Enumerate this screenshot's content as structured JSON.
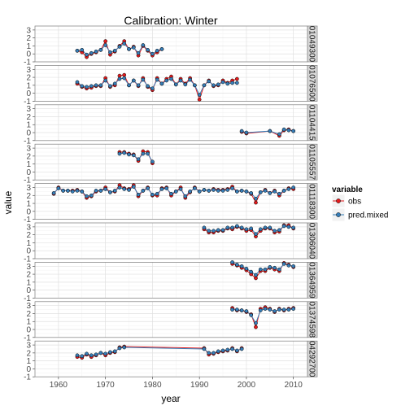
{
  "chart_data": {
    "type": "line",
    "title": "Calibration: Winter",
    "xlabel": "year",
    "ylabel": "value",
    "xlim": [
      1955,
      2013
    ],
    "ylim": [
      -1,
      3.5
    ],
    "x_ticks": [
      1960,
      1970,
      1980,
      1990,
      2000,
      2010
    ],
    "y_ticks": [
      -1,
      0,
      1,
      2,
      3
    ],
    "grid": true,
    "legend": {
      "title": "variable",
      "position": "right",
      "entries": [
        {
          "name": "obs",
          "color": "#e41a1c"
        },
        {
          "name": "pred.mixed",
          "color": "#377eb8"
        }
      ]
    },
    "panels": [
      {
        "label": "01049300",
        "x": [
          1964,
          1965,
          1966,
          1967,
          1968,
          1969,
          1970,
          1971,
          1972,
          1973,
          1974,
          1975,
          1976,
          1977,
          1978,
          1979,
          1980,
          1981,
          1982
        ],
        "obs": [
          0.4,
          0.2,
          -0.4,
          0.0,
          0.2,
          0.5,
          1.6,
          -0.1,
          0.3,
          1.0,
          1.6,
          0.6,
          0.9,
          -0.2,
          1.0,
          0.4,
          -0.2,
          0.2,
          0.6
        ],
        "pred": [
          0.4,
          0.5,
          -0.1,
          0.1,
          0.3,
          0.5,
          1.1,
          0.2,
          0.4,
          0.9,
          1.3,
          0.6,
          0.8,
          0.1,
          1.1,
          0.5,
          0.0,
          0.4,
          0.6
        ]
      },
      {
        "label": "01076500",
        "x": [
          1964,
          1965,
          1966,
          1967,
          1968,
          1969,
          1970,
          1971,
          1972,
          1973,
          1974,
          1975,
          1976,
          1977,
          1978,
          1979,
          1980,
          1981,
          1982,
          1983,
          1984,
          1985,
          1986,
          1987,
          1988,
          1989,
          1990,
          1991,
          1992,
          1993,
          1994,
          1995,
          1996,
          1997,
          1998
        ],
        "obs": [
          1.2,
          0.8,
          0.6,
          0.7,
          0.9,
          0.9,
          1.9,
          0.8,
          1.0,
          2.2,
          2.3,
          1.0,
          1.6,
          0.9,
          1.9,
          0.8,
          0.4,
          1.9,
          1.2,
          1.8,
          2.1,
          1.1,
          1.8,
          1.2,
          1.9,
          1.0,
          -0.8,
          1.0,
          1.6,
          0.9,
          1.0,
          1.6,
          1.3,
          1.6,
          1.8
        ],
        "pred": [
          1.4,
          0.9,
          0.8,
          0.9,
          1.0,
          1.0,
          1.6,
          0.9,
          1.2,
          1.8,
          1.9,
          1.0,
          1.6,
          1.0,
          1.7,
          0.9,
          0.6,
          1.7,
          1.2,
          1.6,
          1.8,
          1.1,
          1.6,
          1.1,
          1.7,
          1.0,
          -0.2,
          1.0,
          1.5,
          1.0,
          1.1,
          1.4,
          1.2,
          1.3,
          1.3
        ]
      },
      {
        "label": "01104415",
        "x": [
          1999,
          2000,
          2005,
          2007,
          2008,
          2009,
          2010
        ],
        "obs": [
          0.1,
          -0.1,
          0.2,
          -0.4,
          0.3,
          0.4,
          0.2
        ],
        "pred": [
          0.2,
          0.0,
          0.2,
          -0.2,
          0.4,
          0.3,
          0.2
        ]
      },
      {
        "label": "01105557",
        "x": [
          1973,
          1974,
          1975,
          1976,
          1977,
          1978,
          1979,
          1980
        ],
        "obs": [
          2.5,
          2.5,
          2.3,
          2.2,
          1.4,
          2.6,
          2.5,
          1.1
        ],
        "pred": [
          2.3,
          2.4,
          2.2,
          2.1,
          1.6,
          2.3,
          2.3,
          1.3
        ]
      },
      {
        "label": "01118300",
        "x": [
          1959,
          1960,
          1961,
          1962,
          1963,
          1964,
          1965,
          1966,
          1967,
          1968,
          1969,
          1970,
          1971,
          1972,
          1973,
          1974,
          1975,
          1976,
          1977,
          1978,
          1979,
          1980,
          1981,
          1982,
          1983,
          1984,
          1985,
          1986,
          1987,
          1988,
          1989,
          1990,
          1991,
          1992,
          1993,
          1994,
          1995,
          1996,
          1997,
          1998,
          1999,
          2000,
          2001,
          2002,
          2003,
          2004,
          2005,
          2006,
          2007,
          2008,
          2009,
          2010
        ],
        "obs": [
          2.2,
          3.0,
          2.6,
          2.6,
          2.6,
          2.7,
          2.5,
          1.7,
          1.9,
          2.5,
          2.6,
          3.0,
          2.4,
          2.5,
          3.3,
          2.9,
          2.8,
          3.3,
          1.9,
          2.6,
          3.0,
          2.0,
          2.0,
          2.9,
          3.0,
          2.0,
          2.5,
          3.0,
          1.7,
          2.4,
          3.0,
          2.5,
          2.7,
          2.6,
          2.8,
          2.7,
          2.7,
          2.8,
          3.1,
          2.5,
          2.6,
          2.5,
          2.2,
          1.1,
          2.4,
          2.7,
          2.3,
          2.6,
          2.0,
          2.6,
          2.9,
          2.8
        ],
        "pred": [
          2.3,
          2.9,
          2.6,
          2.6,
          2.5,
          2.6,
          2.5,
          1.9,
          2.0,
          2.6,
          2.6,
          2.8,
          2.4,
          2.6,
          3.0,
          2.8,
          2.7,
          3.1,
          2.1,
          2.6,
          2.9,
          2.1,
          2.2,
          2.8,
          2.9,
          2.2,
          2.5,
          2.8,
          1.9,
          2.5,
          2.9,
          2.5,
          2.7,
          2.6,
          2.7,
          2.6,
          2.6,
          2.7,
          2.9,
          2.5,
          2.6,
          2.5,
          2.3,
          1.6,
          2.4,
          2.6,
          2.3,
          2.5,
          2.2,
          2.6,
          2.8,
          3.0
        ]
      },
      {
        "label": "01306040",
        "x": [
          1991,
          1992,
          1993,
          1994,
          1995,
          1996,
          1997,
          1998,
          1999,
          2000,
          2001,
          2002,
          2003,
          2004,
          2005,
          2006,
          2007,
          2008,
          2009,
          2010
        ],
        "obs": [
          2.7,
          2.3,
          2.3,
          2.5,
          2.5,
          2.8,
          2.7,
          3.0,
          2.8,
          2.5,
          2.6,
          1.8,
          2.5,
          2.8,
          2.8,
          2.3,
          2.4,
          3.2,
          3.2,
          2.8
        ],
        "pred": [
          2.9,
          2.5,
          2.5,
          2.6,
          2.6,
          2.9,
          2.9,
          3.1,
          2.9,
          2.7,
          2.8,
          2.1,
          2.7,
          2.9,
          2.9,
          2.5,
          2.6,
          3.1,
          3.0,
          2.9
        ]
      },
      {
        "label": "01364959",
        "x": [
          1997,
          1998,
          1999,
          2000,
          2001,
          2002,
          2003,
          2004,
          2005,
          2006,
          2007,
          2008,
          2009,
          2010
        ],
        "obs": [
          3.3,
          3.1,
          2.8,
          2.5,
          2.0,
          1.5,
          2.4,
          2.4,
          2.8,
          2.6,
          2.4,
          3.4,
          3.2,
          2.9
        ],
        "pred": [
          3.5,
          3.2,
          3.0,
          2.7,
          2.3,
          1.9,
          2.6,
          2.6,
          2.9,
          2.8,
          2.6,
          3.3,
          3.1,
          3.0
        ]
      },
      {
        "label": "01374598",
        "x": [
          1997,
          1998,
          1999,
          2000,
          2001,
          2002,
          2003,
          2004,
          2005,
          2006,
          2007,
          2008,
          2009,
          2010
        ],
        "obs": [
          2.7,
          2.4,
          2.4,
          2.2,
          1.9,
          0.3,
          2.6,
          2.8,
          2.6,
          2.2,
          2.6,
          2.4,
          2.6,
          2.7
        ],
        "pred": [
          2.5,
          2.5,
          2.4,
          2.3,
          1.8,
          0.8,
          2.4,
          2.6,
          2.5,
          2.3,
          2.5,
          2.5,
          2.5,
          2.6
        ]
      },
      {
        "label": "04292700",
        "x": [
          1964,
          1965,
          1966,
          1967,
          1968,
          1969,
          1970,
          1971,
          1972,
          1973,
          1974,
          1991,
          1992,
          1993,
          1994,
          1995,
          1996,
          1997,
          1998,
          1999
        ],
        "obs": [
          1.5,
          1.4,
          1.8,
          1.5,
          1.7,
          2.0,
          1.7,
          2.0,
          2.1,
          2.7,
          2.8,
          2.6,
          1.8,
          1.9,
          2.1,
          2.2,
          2.3,
          2.6,
          2.2,
          2.6
        ],
        "pred": [
          1.7,
          1.6,
          1.9,
          1.7,
          1.8,
          2.0,
          1.9,
          2.1,
          2.2,
          2.6,
          2.7,
          2.5,
          2.0,
          2.0,
          2.2,
          2.3,
          2.4,
          2.5,
          2.3,
          2.5
        ]
      }
    ]
  }
}
